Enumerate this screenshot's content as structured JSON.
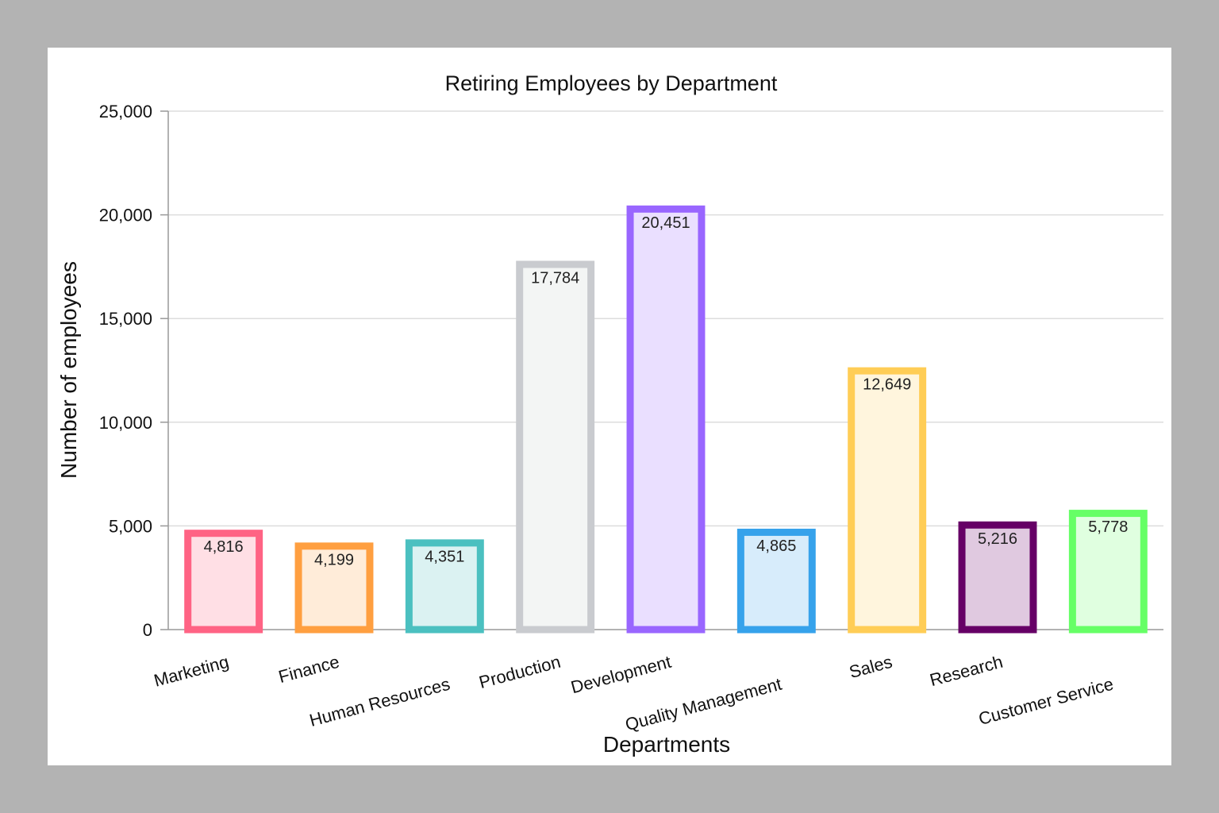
{
  "chart_data": {
    "type": "bar",
    "title": "Retiring Employees by Department",
    "xlabel": "Departments",
    "ylabel": "Number of employees",
    "ylim": [
      0,
      25000
    ],
    "yticks": [
      0,
      5000,
      10000,
      15000,
      20000,
      25000
    ],
    "ytick_labels": [
      "0",
      "5,000",
      "10,000",
      "15,000",
      "20,000",
      "25,000"
    ],
    "grid": true,
    "legend": "none",
    "categories": [
      "Marketing",
      "Finance",
      "Human Resources",
      "Production",
      "Development",
      "Quality Management",
      "Sales",
      "Research",
      "Customer Service"
    ],
    "values": [
      4816,
      4199,
      4351,
      17784,
      20451,
      4865,
      12649,
      5216,
      5778
    ],
    "value_labels": [
      "4,816",
      "4,199",
      "4,351",
      "17,784",
      "20,451",
      "4,865",
      "12,649",
      "5,216",
      "5,778"
    ],
    "colors": [
      "#ff6384",
      "#ff9f40",
      "#4bc0c0",
      "#c9cbcf",
      "#9966ff",
      "#36a2eb",
      "#ffcd56",
      "#660066",
      "#66ff66"
    ],
    "fill_colors": [
      "#ffdfe5",
      "#ffecd9",
      "#dbf2f2",
      "#f3f5f4",
      "#eadfff",
      "#d7ecfb",
      "#fff5dd",
      "#e0c9e0",
      "#e0ffe0"
    ]
  }
}
